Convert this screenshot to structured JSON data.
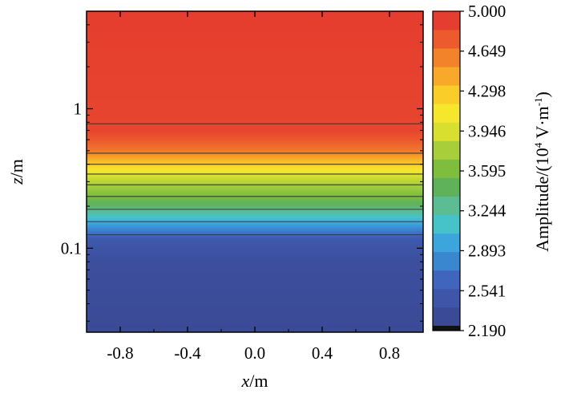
{
  "chart_data": {
    "type": "heatmap",
    "x": {
      "label_italic": "x",
      "label_unit": "/m",
      "ticks": [
        -0.8,
        -0.4,
        0.0,
        0.4,
        0.8
      ],
      "tick_labels": [
        "-0.8",
        "-0.4",
        "0.0",
        "0.4",
        "0.8"
      ],
      "range": [
        -1.0,
        1.0
      ]
    },
    "y": {
      "label_italic": "z",
      "label_unit": "/m",
      "scale": "log",
      "ticks": [
        0.1,
        1
      ],
      "tick_labels": [
        "0.1",
        "1"
      ],
      "range": [
        0.025,
        5.0
      ]
    },
    "z_profile": [
      {
        "z": 0.025,
        "value": 2.19
      },
      {
        "z": 0.08,
        "value": 2.25
      },
      {
        "z": 0.115,
        "value": 2.4
      },
      {
        "z": 0.135,
        "value": 2.7
      },
      {
        "z": 0.16,
        "value": 3.0
      },
      {
        "z": 0.19,
        "value": 3.3
      },
      {
        "z": 0.24,
        "value": 3.6
      },
      {
        "z": 0.32,
        "value": 3.9
      },
      {
        "z": 0.4,
        "value": 4.3
      },
      {
        "z": 0.5,
        "value": 4.7
      },
      {
        "z": 0.7,
        "value": 4.95
      },
      {
        "z": 5.0,
        "value": 5.0
      }
    ],
    "contour_lines_z": [
      0.125,
      0.155,
      0.19,
      0.235,
      0.285,
      0.34,
      0.4,
      0.48,
      0.78
    ],
    "colorbar": {
      "label_text": "Amplitude/(10",
      "label_sup1": "4",
      "label_mid": " V·m",
      "label_sup2": "-1",
      "label_end": ")",
      "min": 2.19,
      "max": 5.0,
      "tick_labels": [
        "5.000",
        "4.649",
        "4.298",
        "3.946",
        "3.595",
        "3.244",
        "2.893",
        "2.541",
        "2.190"
      ],
      "colors": [
        "#3b4a97",
        "#3d56a8",
        "#3f66bc",
        "#3a86cf",
        "#3ca6dc",
        "#46c2c9",
        "#5cbc94",
        "#5fb15a",
        "#7fbe3c",
        "#a8cf3a",
        "#d8df2f",
        "#f7e72c",
        "#fbcd29",
        "#f8a92a",
        "#f3832b",
        "#ec5a2d",
        "#e53d2f"
      ]
    }
  }
}
